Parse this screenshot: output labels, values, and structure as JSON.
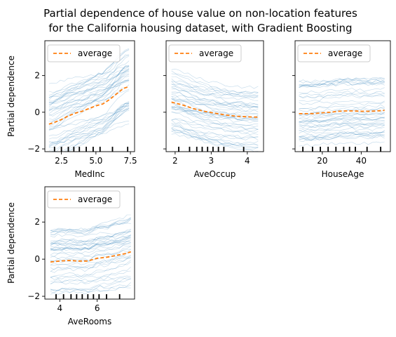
{
  "chart_data": {
    "type": "line",
    "title": "Partial dependence of house value on non-location features\nfor the California housing dataset, with Gradient Boosting",
    "legend_label": "average",
    "legend_placement": "top-left",
    "grid": false,
    "colors": {
      "average": "#ff7f0e",
      "ice": "#1f77b4",
      "deciles": "#000000"
    },
    "panels": [
      {
        "feature": "MedInc",
        "xlabel": "MedInc",
        "ylabel": "Partial dependence",
        "xlim": [
          1.3,
          7.8
        ],
        "ylim": [
          -2.15,
          3.9
        ],
        "xticks": [
          2.5,
          5.0,
          7.5
        ],
        "xtick_labels": [
          "2.5",
          "5.0",
          "7.5"
        ],
        "yticks": [
          -2,
          0,
          2
        ],
        "ytick_labels": [
          "−2",
          "0",
          "2"
        ],
        "show_yticklabels": true,
        "average": {
          "x": [
            1.6,
            2.0,
            2.5,
            3.0,
            3.5,
            4.0,
            4.5,
            5.0,
            5.5,
            6.0,
            6.5,
            7.0,
            7.4
          ],
          "y": [
            -0.65,
            -0.55,
            -0.4,
            -0.2,
            -0.05,
            0.05,
            0.2,
            0.35,
            0.45,
            0.7,
            1.0,
            1.3,
            1.4
          ]
        },
        "deciles": [
          2.0,
          2.5,
          3.0,
          3.4,
          3.8,
          4.3,
          4.8,
          5.3,
          6.2,
          7.3
        ]
      },
      {
        "feature": "AveOccup",
        "xlabel": "AveOccup",
        "ylabel": "",
        "xlim": [
          1.75,
          4.45
        ],
        "ylim": [
          -2.15,
          3.9
        ],
        "xticks": [
          2,
          3,
          4
        ],
        "xtick_labels": [
          "2",
          "3",
          "4"
        ],
        "yticks": [
          -2,
          0,
          2
        ],
        "ytick_labels": [],
        "show_yticklabels": false,
        "average": {
          "x": [
            1.9,
            2.2,
            2.5,
            2.8,
            3.1,
            3.4,
            3.7,
            4.0,
            4.3
          ],
          "y": [
            0.55,
            0.4,
            0.2,
            0.05,
            -0.05,
            -0.15,
            -0.22,
            -0.25,
            -0.27
          ]
        },
        "deciles": [
          2.1,
          2.4,
          2.6,
          2.75,
          2.9,
          3.05,
          3.2,
          3.35,
          3.9
        ]
      },
      {
        "feature": "HouseAge",
        "xlabel": "HouseAge",
        "ylabel": "",
        "xlim": [
          6.0,
          55.0
        ],
        "ylim": [
          -2.15,
          3.9
        ],
        "xticks": [
          20,
          40
        ],
        "xtick_labels": [
          "20",
          "40"
        ],
        "yticks": [
          -2,
          0,
          2
        ],
        "ytick_labels": [],
        "show_yticklabels": false,
        "average": {
          "x": [
            8,
            12,
            16,
            20,
            24,
            28,
            32,
            36,
            40,
            44,
            48,
            52
          ],
          "y": [
            -0.08,
            -0.08,
            -0.07,
            -0.03,
            0.0,
            0.05,
            0.07,
            0.07,
            0.05,
            0.05,
            0.07,
            0.1
          ]
        },
        "deciles": [
          10,
          15,
          19,
          23,
          27,
          31,
          34,
          37,
          43,
          50
        ]
      },
      {
        "feature": "AveRooms",
        "xlabel": "AveRooms",
        "ylabel": "Partial dependence",
        "xlim": [
          3.2,
          8.0
        ],
        "ylim": [
          -2.15,
          3.9
        ],
        "xticks": [
          4,
          6
        ],
        "xtick_labels": [
          "4",
          "6"
        ],
        "yticks": [
          -2,
          0,
          2
        ],
        "ytick_labels": [
          "−2",
          "0",
          "2"
        ],
        "show_yticklabels": true,
        "average": {
          "x": [
            3.5,
            4.0,
            4.5,
            5.0,
            5.5,
            6.0,
            6.5,
            7.0,
            7.5,
            7.8
          ],
          "y": [
            -0.15,
            -0.1,
            -0.07,
            -0.1,
            -0.1,
            0.05,
            0.1,
            0.2,
            0.3,
            0.4
          ]
        },
        "deciles": [
          3.8,
          4.2,
          4.6,
          4.9,
          5.2,
          5.5,
          5.8,
          6.1,
          6.5,
          7.2
        ]
      }
    ]
  }
}
